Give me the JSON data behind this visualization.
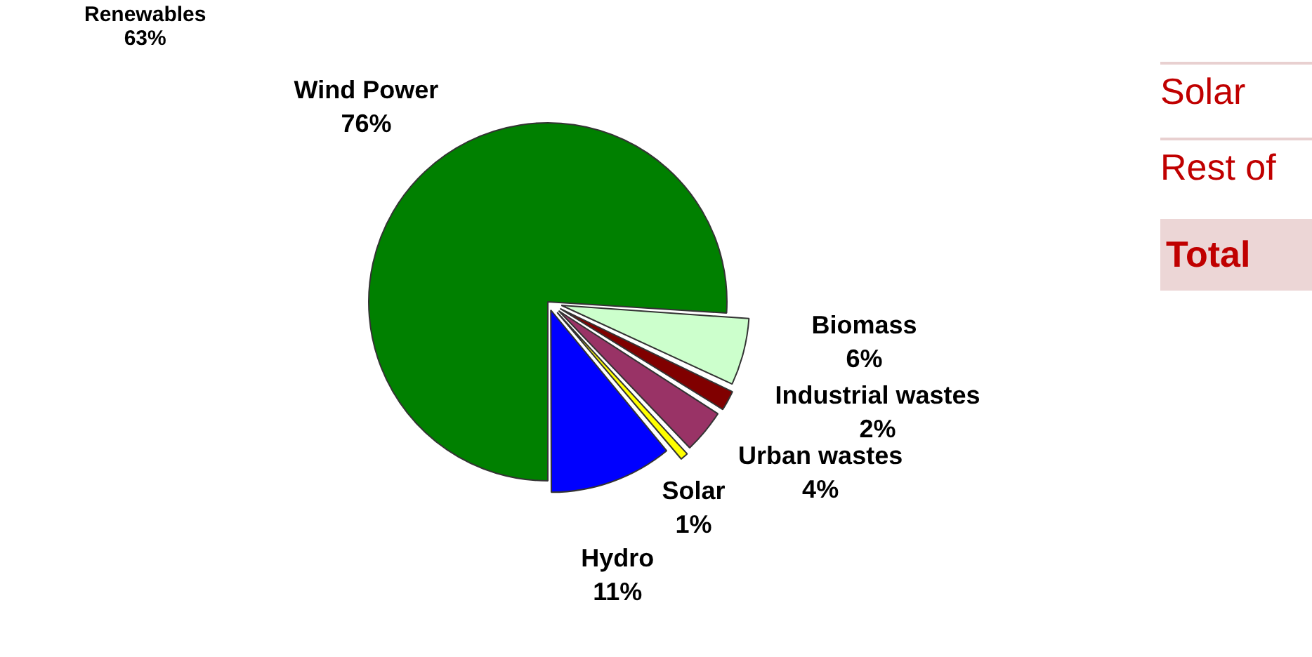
{
  "chart_data": {
    "type": "pie",
    "categories": [
      "Wind Power",
      "Biomass",
      "Industrial wastes",
      "Urban wastes",
      "Solar",
      "Hydro"
    ],
    "values": [
      76,
      6,
      2,
      4,
      1,
      11
    ],
    "value_labels": [
      "76%",
      "6%",
      "2%",
      "4%",
      "1%",
      "11%"
    ],
    "colors": [
      "#008000",
      "#ccffcc",
      "#800000",
      "#993366",
      "#ffff00",
      "#0000ff"
    ],
    "legend": false,
    "annotations": [
      "Renewables\n63%",
      "Solar",
      "Rest of",
      "Total"
    ]
  }
}
